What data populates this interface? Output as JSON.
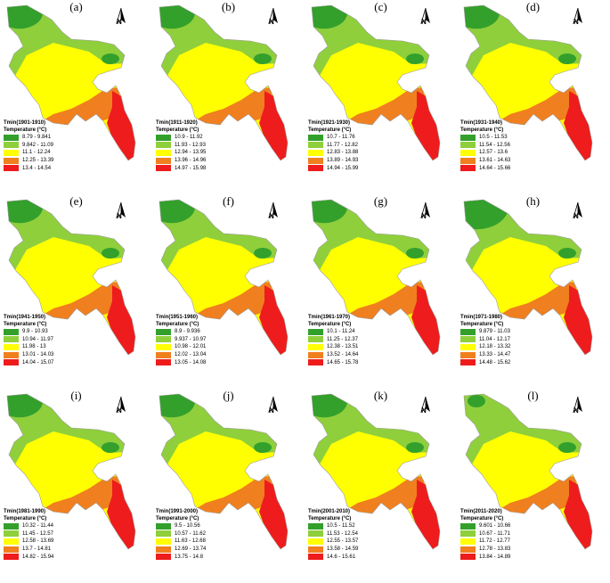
{
  "colors": [
    "#33a02c",
    "#8fcf3c",
    "#ffff00",
    "#f07f1f",
    "#ee1c1c"
  ],
  "legend_subtitle": "Temperature (°C)",
  "north_label": "N",
  "panels": [
    {
      "label": "(a)",
      "title": "Tmin(1901-1910)",
      "classes": [
        "8.79 - 9.841",
        "9.842 - 11.09",
        "11.1 - 12.24",
        "12.25 - 13.39",
        "13.4 - 14.54"
      ]
    },
    {
      "label": "(b)",
      "title": "Tmin(1911-1920)",
      "classes": [
        "10.9 - 11.92",
        "11.93 - 12.93",
        "12.94 - 13.95",
        "13.96 - 14.96",
        "14.97 - 15.98"
      ]
    },
    {
      "label": "(c)",
      "title": "Tmin(1921-1930)",
      "classes": [
        "10.7 - 11.76",
        "11.77 - 12.82",
        "12.83 - 13.88",
        "13.89 - 14.93",
        "14.94 - 15.99"
      ]
    },
    {
      "label": "(d)",
      "title": "Tmin(1931-1940)",
      "classes": [
        "10.5 - 11.53",
        "11.54 - 12.56",
        "12.57 - 13.6",
        "13.61 - 14.63",
        "14.64 - 15.66"
      ]
    },
    {
      "label": "(e)",
      "title": "Tmin(1941-1950)",
      "classes": [
        "9.9 - 10.93",
        "10.94 - 11.97",
        "11.98 - 13",
        "13.01 - 14.03",
        "14.04 - 15.07"
      ]
    },
    {
      "label": "(f)",
      "title": "Tmin(1951-1960)",
      "classes": [
        "8.9 - 9.936",
        "9.937 - 10.97",
        "10.98 - 12.01",
        "12.02 - 13.04",
        "13.05 - 14.08"
      ]
    },
    {
      "label": "(g)",
      "title": "Tmin(1961-1970)",
      "classes": [
        "10.1 - 11.24",
        "11.25 - 12.37",
        "12.38 - 13.51",
        "13.52 - 14.64",
        "14.65 - 15.78"
      ]
    },
    {
      "label": "(h)",
      "title": "Tmin(1971-1980)",
      "classes": [
        "9.879 - 11.03",
        "11.04 - 12.17",
        "12.18 - 13.32",
        "13.33 - 14.47",
        "14.48 - 15.62"
      ]
    },
    {
      "label": "(i)",
      "title": "Tmin(1981-1990)",
      "classes": [
        "10.32 - 11.44",
        "11.45 - 12.57",
        "12.58 - 13.69",
        "13.7 - 14.81",
        "14.82 - 15.94"
      ]
    },
    {
      "label": "(j)",
      "title": "Tmin(1991-2000)",
      "classes": [
        "9.5 - 10.56",
        "10.57 - 11.62",
        "11.63 - 12.68",
        "12.69 - 13.74",
        "13.75 - 14.8"
      ]
    },
    {
      "label": "(k)",
      "title": "Tmin(2001-2010)",
      "classes": [
        "10.5 - 11.52",
        "11.53 - 12.54",
        "12.55 - 13.57",
        "13.58 - 14.59",
        "14.6 - 15.61"
      ]
    },
    {
      "label": "(l)",
      "title": "Tmin(2011-2020)",
      "classes": [
        "9.601 - 10.66",
        "10.67 - 11.71",
        "11.72 - 12.77",
        "12.78 - 13.83",
        "13.84 - 14.89"
      ]
    }
  ]
}
